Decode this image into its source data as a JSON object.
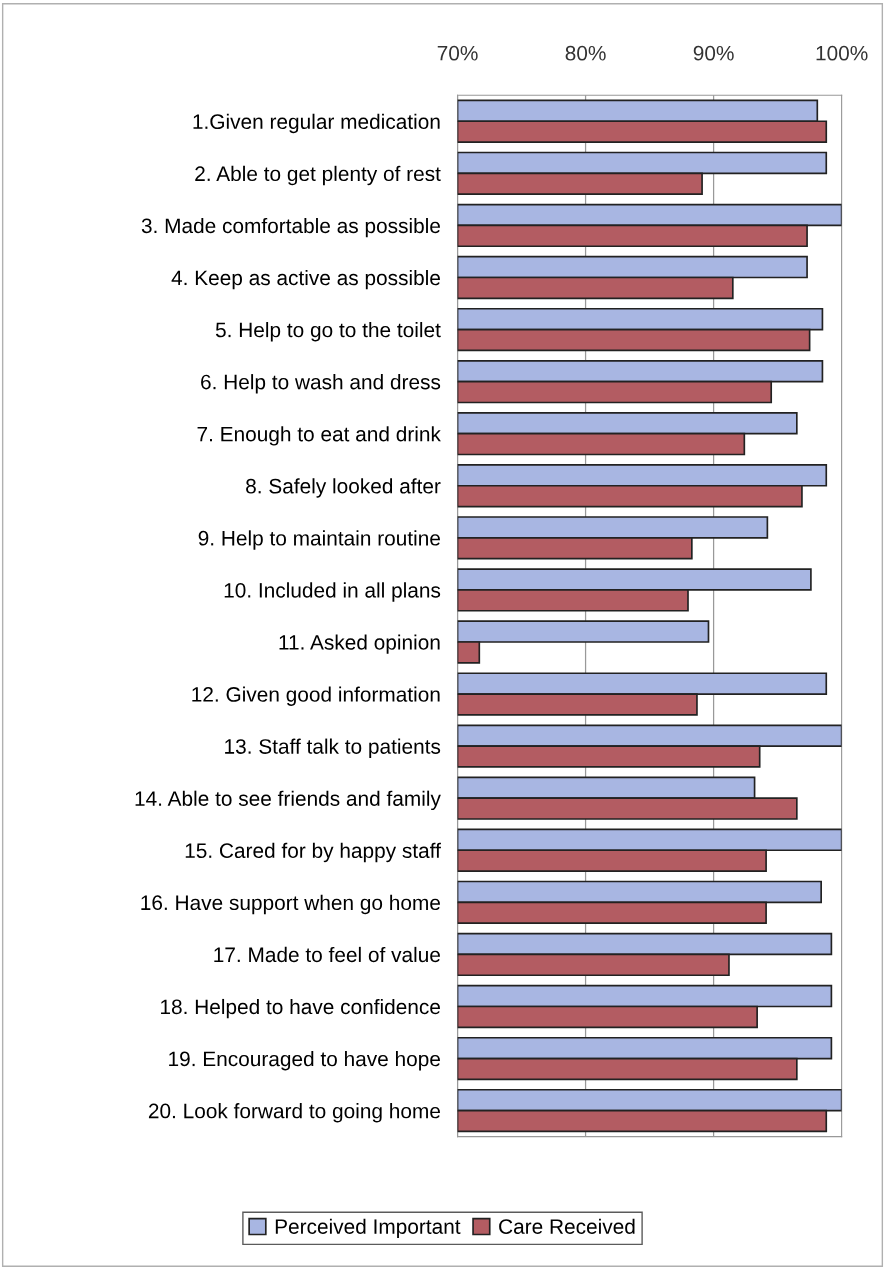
{
  "chart_data": {
    "type": "bar",
    "orientation": "horizontal",
    "categories": [
      "1.Given regular medication",
      "2. Able to get plenty of rest",
      "3. Made comfortable as possible",
      "4. Keep as active as possible",
      "5. Help to go to the toilet",
      "6. Help to wash and dress",
      "7. Enough to eat and drink",
      "8. Safely looked after",
      "9. Help to maintain routine",
      "10. Included in all plans",
      "11. Asked opinion",
      "12. Given good information",
      "13. Staff talk to patients",
      "14. Able to see friends and family",
      "15. Cared for by happy staff",
      "16. Have support when go home",
      "17. Made to feel of value",
      "18. Helped to have confidence",
      "19. Encouraged to have hope",
      "20. Look forward to going home"
    ],
    "series": [
      {
        "name": "Perceived Important",
        "color": "#a8b6e2",
        "values": [
          98.1,
          98.8,
          100,
          97.3,
          98.5,
          98.5,
          96.5,
          98.8,
          94.2,
          97.6,
          89.6,
          98.8,
          100,
          93.2,
          100,
          98.4,
          99.2,
          99.2,
          99.2,
          100
        ]
      },
      {
        "name": "Care Received",
        "color": "#b35c62",
        "values": [
          98.8,
          89.1,
          97.3,
          91.5,
          97.5,
          94.5,
          92.4,
          96.9,
          88.3,
          88.0,
          71.7,
          88.7,
          93.6,
          96.5,
          94.1,
          94.1,
          91.2,
          93.4,
          96.5,
          98.8
        ]
      }
    ],
    "xlim": [
      70,
      100
    ],
    "xticks": [
      {
        "value": 70,
        "label": "70%"
      },
      {
        "value": 80,
        "label": "80%"
      },
      {
        "value": 90,
        "label": "90%"
      },
      {
        "value": 100,
        "label": "100%"
      }
    ],
    "grid": "x",
    "legend": "bottom"
  }
}
